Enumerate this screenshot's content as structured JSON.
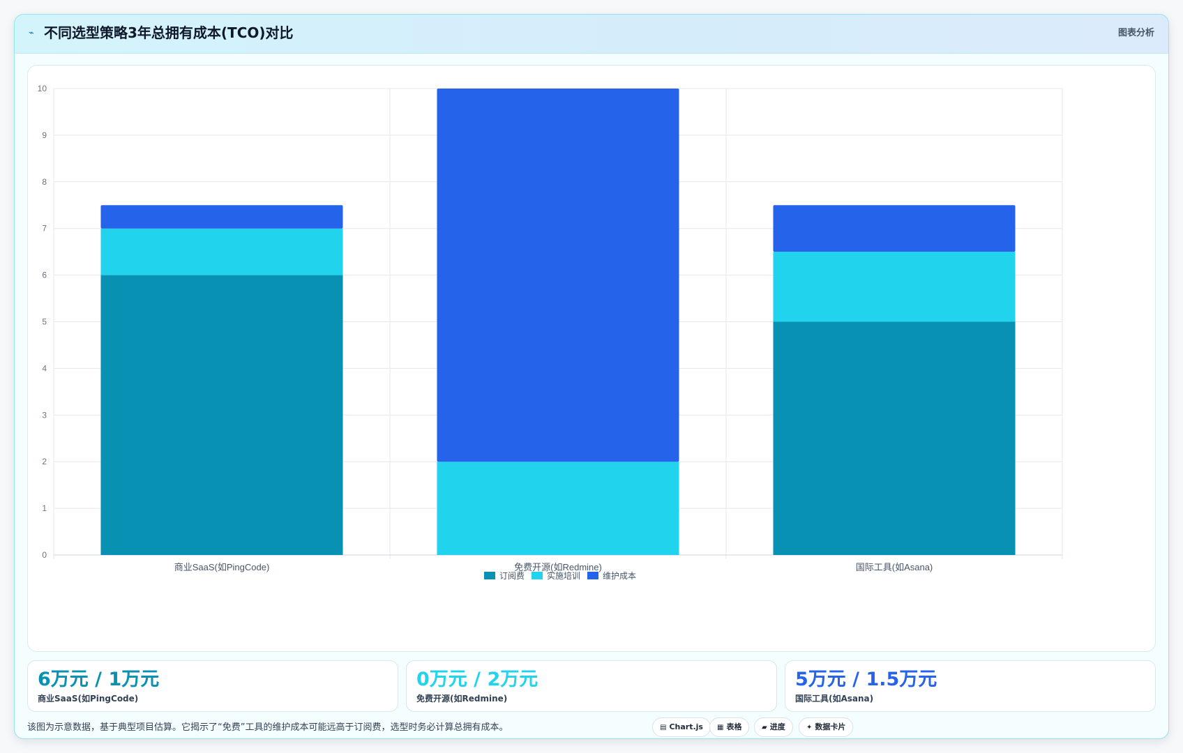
{
  "header": {
    "title": "不同选型策略3年总拥有成本(TCO)对比",
    "badge": "图表分析",
    "icon": "pulse-icon"
  },
  "chart_data": {
    "type": "bar",
    "stacked": true,
    "categories": [
      "商业SaaS(如PingCode)",
      "免费开源(如Redmine)",
      "国际工具(如Asana)"
    ],
    "series": [
      {
        "name": "订阅费",
        "values": [
          6,
          0,
          5
        ],
        "color": "#0891b2"
      },
      {
        "name": "实施培训",
        "values": [
          1,
          2,
          1.5
        ],
        "color": "#22d3ee"
      },
      {
        "name": "维护成本",
        "values": [
          0.5,
          8,
          1
        ],
        "color": "#2563eb"
      }
    ],
    "ylim": [
      0,
      10
    ],
    "yticks": [
      "0",
      "1",
      "2",
      "3",
      "4",
      "5",
      "6",
      "7",
      "8",
      "9",
      "10"
    ],
    "grid": true,
    "legend": "bottom-center"
  },
  "stats": [
    {
      "value": "6万元 / 1万元",
      "label": "商业SaaS(如PingCode)",
      "color": "#0891b2"
    },
    {
      "value": "0万元 / 2万元",
      "label": "免费开源(如Redmine)",
      "color": "#22d3ee"
    },
    {
      "value": "5万元 / 1.5万元",
      "label": "国际工具(如Asana)",
      "color": "#2563eb"
    }
  ],
  "footer": {
    "note": "该图为示意数据，基于典型项目估算。它揭示了“免费”工具的维护成本可能远高于订阅费，选型时务必计算总拥有成本。",
    "actions": [
      {
        "label": "Chart.js",
        "icon": "chart-icon",
        "glyph": "▤"
      },
      {
        "label": "表格",
        "icon": "table-icon",
        "glyph": "▦"
      },
      {
        "label": "进度",
        "icon": "progress-icon",
        "glyph": "▰"
      },
      {
        "label": "数据卡片",
        "icon": "card-icon",
        "glyph": "✦"
      }
    ]
  }
}
